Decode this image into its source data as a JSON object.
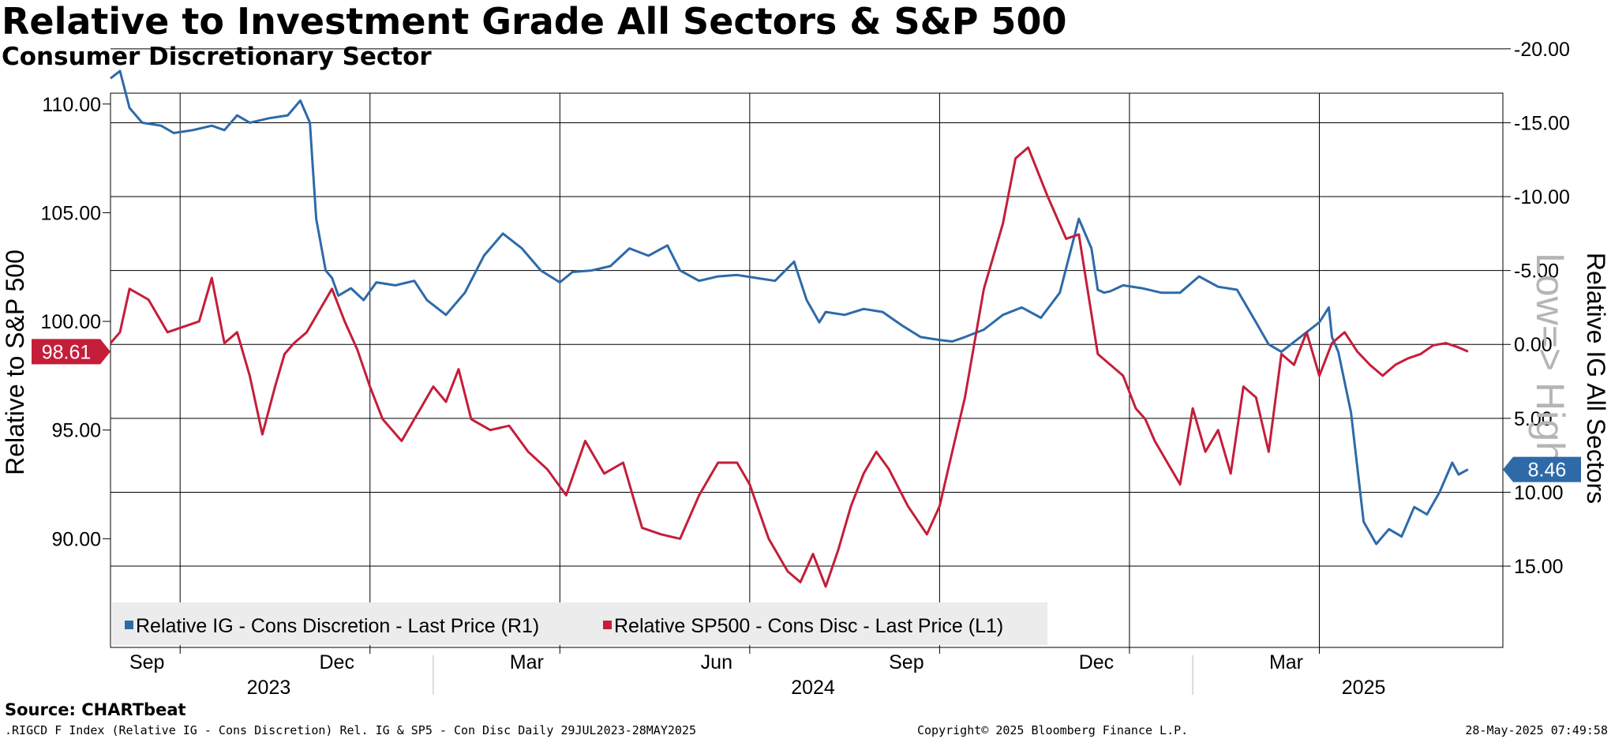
{
  "title": "Relative to Investment Grade All Sectors & S&P 500",
  "subtitle": "Consumer Discretionary Sector",
  "chart_data": {
    "type": "line",
    "left_axis": {
      "label": "Relative to S&P 500",
      "range": [
        85.0,
        110.5
      ],
      "ticks": [
        "110.00",
        "105.00",
        "100.00",
        "95.00",
        "90.00"
      ],
      "tick_values": [
        110,
        105,
        100,
        95,
        90
      ]
    },
    "right_axis": {
      "label": "Relative IG All Sectors",
      "range": [
        20.5,
        -17.0
      ],
      "inverted": true,
      "ticks": [
        "-20.00",
        "-15.00",
        "-10.00",
        "-5.00",
        "0.00",
        "5.00",
        "10.00",
        "15.00"
      ],
      "tick_values": [
        -20,
        -15,
        -10,
        -5,
        0,
        5,
        10,
        15
      ]
    },
    "annotation": "Low=> High",
    "x_month_labels": [
      "Sep",
      "Dec",
      "Mar",
      "Jun",
      "Sep",
      "Dec",
      "Mar"
    ],
    "x_year_labels": [
      "2023",
      "2024",
      "2025"
    ],
    "x_range": [
      0,
      22.0
    ],
    "x_month_positions": [
      1.1,
      4.1,
      7.1,
      10.1,
      13.1,
      16.1,
      19.1
    ],
    "x_year_boundaries": [
      5.1,
      17.1
    ],
    "x_year_label_positions": [
      2.5,
      11.1,
      19.8
    ],
    "series": [
      {
        "name": "Relative IG - Cons Discretion - Last Price (R1)",
        "axis": "right",
        "color": "#2e6aa8",
        "last_value": "8.46",
        "x": [
          0.0,
          0.15,
          0.3,
          0.5,
          0.8,
          1.0,
          1.3,
          1.6,
          1.8,
          2.0,
          2.2,
          2.5,
          2.8,
          3.0,
          3.15,
          3.25,
          3.4,
          3.5,
          3.6,
          3.8,
          4.0,
          4.2,
          4.5,
          4.8,
          5.0,
          5.3,
          5.6,
          5.9,
          6.2,
          6.5,
          6.8,
          7.1,
          7.3,
          7.6,
          7.9,
          8.2,
          8.5,
          8.8,
          9.0,
          9.3,
          9.6,
          9.9,
          10.2,
          10.5,
          10.8,
          11.0,
          11.2,
          11.3,
          11.6,
          11.9,
          12.2,
          12.5,
          12.8,
          13.1,
          13.3,
          13.5,
          13.8,
          14.1,
          14.4,
          14.7,
          15.0,
          15.3,
          15.5,
          15.6,
          15.7,
          15.8,
          16.0,
          16.3,
          16.6,
          16.9,
          17.2,
          17.5,
          17.8,
          18.1,
          18.3,
          18.5,
          18.8,
          19.1,
          19.25,
          19.3,
          19.4,
          19.6,
          19.8,
          20.0,
          20.2,
          20.4,
          20.6,
          20.8,
          21.0,
          21.2,
          21.3,
          21.45
        ],
        "values": [
          -18.0,
          -18.5,
          -16.0,
          -15.0,
          -14.8,
          -14.3,
          -14.5,
          -14.8,
          -14.5,
          -15.5,
          -15.0,
          -15.3,
          -15.5,
          -16.5,
          -15.0,
          -8.5,
          -5.0,
          -4.5,
          -3.3,
          -3.8,
          -3.0,
          -4.2,
          -4.0,
          -4.3,
          -3.0,
          -2.0,
          -3.5,
          -6.0,
          -7.5,
          -6.5,
          -5.0,
          -4.2,
          -4.9,
          -5.0,
          -5.3,
          -6.5,
          -6.0,
          -6.7,
          -5.0,
          -4.3,
          -4.6,
          -4.7,
          -4.5,
          -4.3,
          -5.6,
          -3.0,
          -1.5,
          -2.2,
          -2.0,
          -2.4,
          -2.2,
          -1.3,
          -0.5,
          -0.3,
          -0.2,
          -0.5,
          -1.0,
          -2.0,
          -2.5,
          -1.8,
          -3.5,
          -8.5,
          -6.5,
          -3.7,
          -3.5,
          -3.6,
          -4.0,
          -3.8,
          -3.5,
          -3.5,
          -4.6,
          -3.9,
          -3.7,
          -1.5,
          0.0,
          0.5,
          -0.5,
          -1.5,
          -2.5,
          -0.5,
          0.5,
          4.6,
          12.0,
          13.5,
          12.5,
          13.0,
          11.0,
          11.5,
          10.0,
          8.0,
          8.8,
          8.46
        ]
      },
      {
        "name": "Relative SP500 - Cons Disc - Last Price (L1)",
        "axis": "left",
        "color": "#c41e3a",
        "last_value": "98.61",
        "x": [
          0.0,
          0.15,
          0.3,
          0.6,
          0.9,
          1.2,
          1.4,
          1.6,
          1.8,
          2.0,
          2.2,
          2.4,
          2.6,
          2.75,
          2.9,
          3.1,
          3.3,
          3.5,
          3.7,
          3.9,
          4.1,
          4.3,
          4.6,
          4.9,
          5.1,
          5.3,
          5.5,
          5.7,
          6.0,
          6.3,
          6.6,
          6.9,
          7.2,
          7.5,
          7.8,
          8.1,
          8.4,
          8.7,
          9.0,
          9.3,
          9.6,
          9.9,
          10.1,
          10.4,
          10.7,
          10.9,
          11.1,
          11.3,
          11.5,
          11.7,
          11.9,
          12.1,
          12.3,
          12.6,
          12.9,
          13.1,
          13.3,
          13.5,
          13.8,
          14.1,
          14.3,
          14.5,
          14.8,
          15.1,
          15.3,
          15.6,
          16.0,
          16.2,
          16.35,
          16.5,
          16.7,
          16.9,
          17.1,
          17.3,
          17.5,
          17.7,
          17.9,
          18.1,
          18.3,
          18.5,
          18.7,
          18.9,
          19.1,
          19.3,
          19.5,
          19.7,
          19.9,
          20.1,
          20.3,
          20.5,
          20.7,
          20.9,
          21.1,
          21.3,
          21.45
        ],
        "values": [
          99.0,
          99.5,
          101.5,
          101.0,
          99.5,
          99.8,
          100.0,
          102.0,
          99.0,
          99.5,
          97.5,
          94.8,
          97.0,
          98.5,
          99.0,
          99.5,
          100.5,
          101.5,
          100.0,
          98.7,
          97.0,
          95.5,
          94.5,
          96.0,
          97.0,
          96.3,
          97.8,
          95.5,
          95.0,
          95.2,
          94.0,
          93.2,
          92.0,
          94.5,
          93.0,
          93.5,
          90.5,
          90.2,
          90.0,
          92.0,
          93.5,
          93.5,
          92.5,
          90.0,
          88.5,
          88.0,
          89.3,
          87.8,
          89.5,
          91.5,
          93.0,
          94.0,
          93.2,
          91.5,
          90.2,
          91.5,
          94.0,
          96.5,
          101.5,
          104.5,
          107.5,
          108.0,
          105.8,
          103.8,
          104.0,
          98.5,
          97.5,
          96.0,
          95.5,
          94.5,
          93.5,
          92.5,
          96.0,
          94.0,
          95.0,
          93.0,
          97.0,
          96.5,
          94.0,
          98.5,
          98.0,
          99.5,
          97.5,
          99.0,
          99.5,
          98.61,
          98.0,
          97.5,
          98.0,
          98.3,
          98.5,
          98.9,
          99.0,
          98.8,
          98.61
        ]
      }
    ]
  },
  "legend": [
    {
      "label": "Relative IG - Cons Discretion - Last Price (R1)",
      "color": "#2e6aa8"
    },
    {
      "label": "Relative SP500 - Cons Disc - Last Price (L1)",
      "color": "#c41e3a"
    }
  ],
  "source": "Source: CHARTbeat",
  "footer": {
    "left": ".RIGCD F Index (Relative IG - Cons Discretion) Rel. IG & SP5 - Con Disc  Daily 29JUL2023-28MAY2025",
    "center": "Copyright© 2025 Bloomberg Finance L.P.",
    "right": "28-May-2025 07:49:58"
  }
}
